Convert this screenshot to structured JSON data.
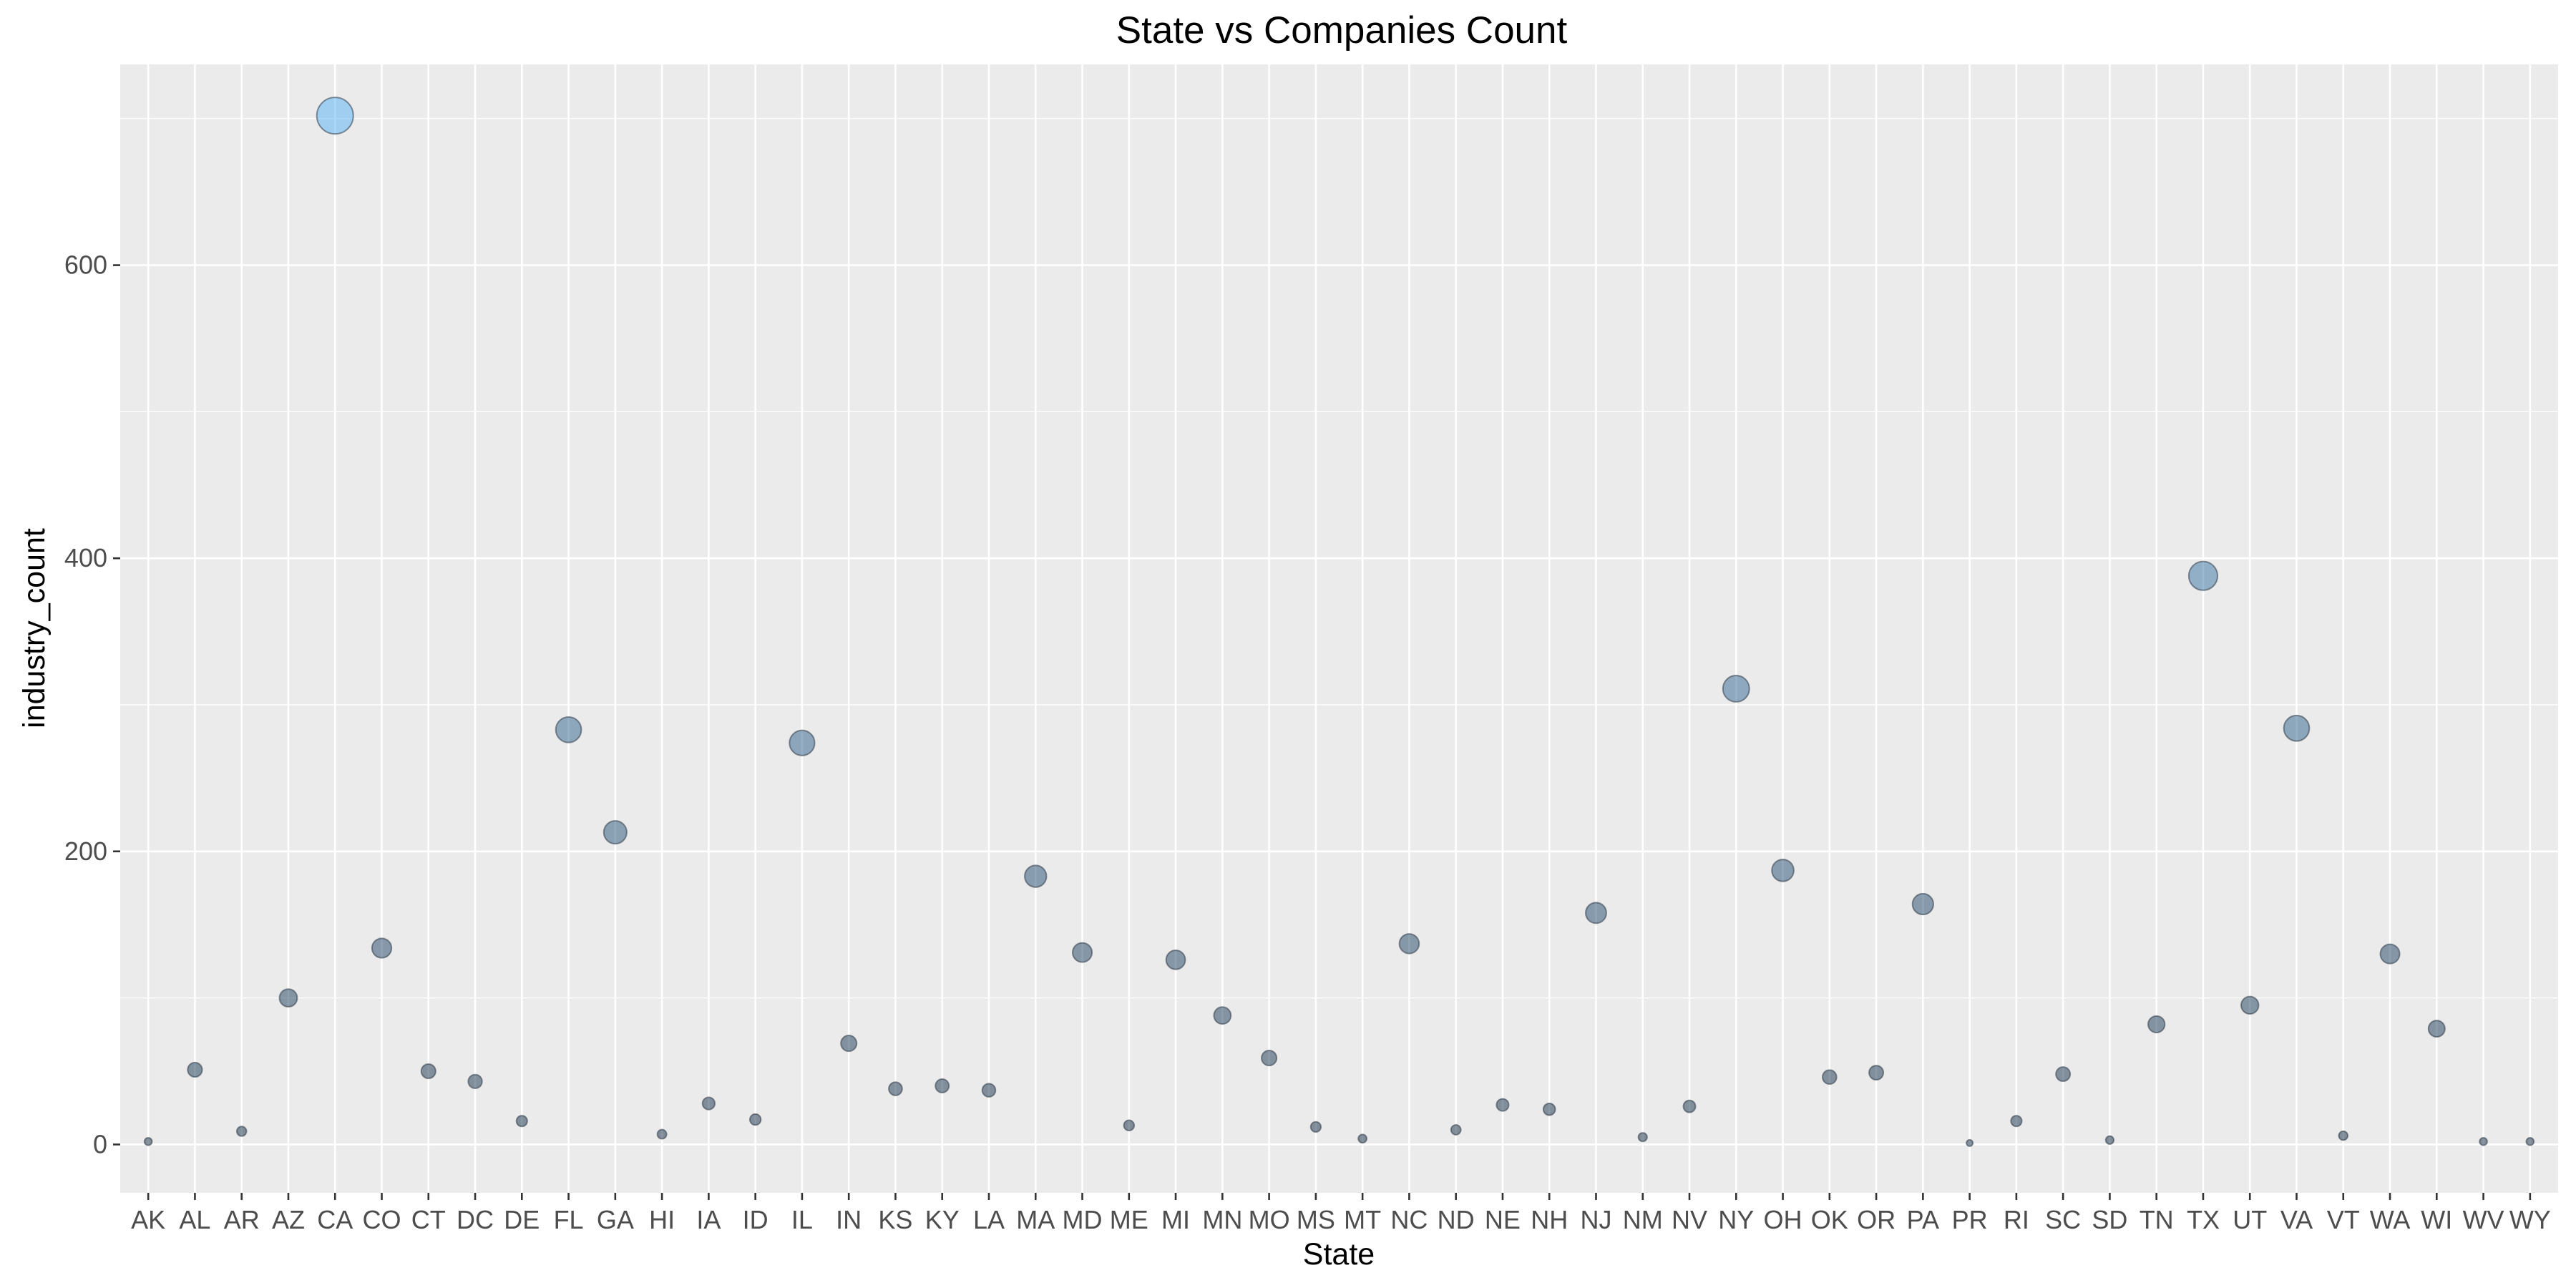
{
  "chart_data": {
    "type": "scatter",
    "title": "State vs Companies Count",
    "xlabel": "State",
    "ylabel": "industry_count",
    "ylim": [
      -33,
      737
    ],
    "yticks": [
      0,
      200,
      400,
      600
    ],
    "grid": true,
    "legend": "none",
    "colors": {
      "low": "#132B43",
      "high": "#56B1F7",
      "panel": "#EBEBEB",
      "grid": "#FFFFFF"
    },
    "categories": [
      "AK",
      "AL",
      "AR",
      "AZ",
      "CA",
      "CO",
      "CT",
      "DC",
      "DE",
      "FL",
      "GA",
      "HI",
      "IA",
      "ID",
      "IL",
      "IN",
      "KS",
      "KY",
      "LA",
      "MA",
      "MD",
      "ME",
      "MI",
      "MN",
      "MO",
      "MS",
      "MT",
      "NC",
      "ND",
      "NE",
      "NH",
      "NJ",
      "NM",
      "NV",
      "NY",
      "OH",
      "OK",
      "OR",
      "PA",
      "PR",
      "RI",
      "SC",
      "SD",
      "TN",
      "TX",
      "UT",
      "VA",
      "VT",
      "WA",
      "WI",
      "WV",
      "WY"
    ],
    "values": [
      2,
      51,
      9,
      100,
      702,
      134,
      50,
      43,
      16,
      283,
      213,
      7,
      28,
      17,
      274,
      69,
      38,
      40,
      37,
      183,
      131,
      13,
      126,
      88,
      59,
      12,
      4,
      137,
      10,
      27,
      24,
      158,
      5,
      26,
      311,
      187,
      46,
      49,
      164,
      1,
      16,
      48,
      3,
      82,
      388,
      95,
      284,
      6,
      130,
      79,
      2,
      2
    ]
  }
}
